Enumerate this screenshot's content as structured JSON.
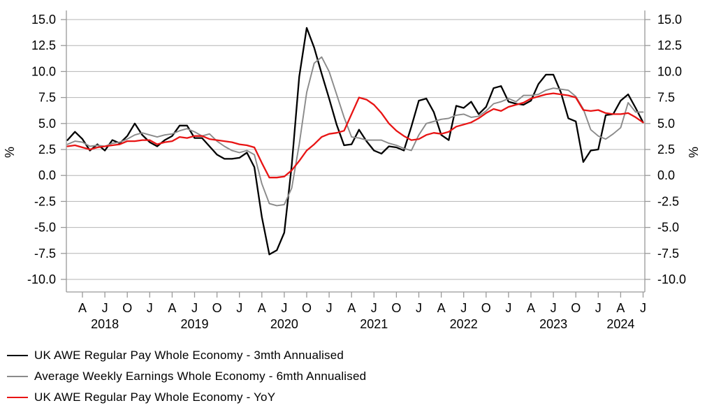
{
  "chart_data": {
    "type": "line",
    "title": "",
    "ylabel": "%",
    "ylabel_right": "%",
    "unit": "percent",
    "grid": "horizontal",
    "legend_position": "bottom-left",
    "ylim": [
      -10.0,
      15.0
    ],
    "ytick_labels": [
      "15.0",
      "12.5",
      "10.0",
      "7.5",
      "5.0",
      "2.5",
      "0.0",
      "-2.5",
      "-5.0",
      "-7.5",
      "-10.0"
    ],
    "x_start_month": "Feb 2018",
    "x_end_month": "Jul 2024",
    "xtick_quarters": [
      {
        "label": "A",
        "month": 2
      },
      {
        "label": "J",
        "month": 5
      },
      {
        "label": "O",
        "month": 8
      },
      {
        "label": "J",
        "month": 11
      },
      {
        "label": "A",
        "month": 14
      },
      {
        "label": "J",
        "month": 17
      },
      {
        "label": "O",
        "month": 20
      },
      {
        "label": "J",
        "month": 23
      },
      {
        "label": "A",
        "month": 26
      },
      {
        "label": "J",
        "month": 29
      },
      {
        "label": "O",
        "month": 32
      },
      {
        "label": "J",
        "month": 35
      },
      {
        "label": "A",
        "month": 38
      },
      {
        "label": "J",
        "month": 41
      },
      {
        "label": "O",
        "month": 44
      },
      {
        "label": "J",
        "month": 47
      },
      {
        "label": "A",
        "month": 50
      },
      {
        "label": "J",
        "month": 53
      },
      {
        "label": "O",
        "month": 56
      },
      {
        "label": "J",
        "month": 59
      },
      {
        "label": "A",
        "month": 62
      },
      {
        "label": "J",
        "month": 65
      },
      {
        "label": "O",
        "month": 68
      },
      {
        "label": "J",
        "month": 71
      },
      {
        "label": "A",
        "month": 74
      },
      {
        "label": "J",
        "month": 77
      }
    ],
    "year_labels": [
      {
        "label": "2018",
        "month": 5
      },
      {
        "label": "2019",
        "month": 17
      },
      {
        "label": "2020",
        "month": 29
      },
      {
        "label": "2021",
        "month": 41
      },
      {
        "label": "2022",
        "month": 53
      },
      {
        "label": "2023",
        "month": 65
      },
      {
        "label": "2024",
        "month": 74
      }
    ],
    "colors": {
      "grid": "#b4b4b4",
      "axis": "#999999",
      "tick_text": "#000000"
    },
    "series": [
      {
        "id": "awe-3mth-annualised",
        "name": "UK AWE Regular Pay Whole Economy - 3mth Annualised",
        "color": "#000000",
        "stroke_width": 2.3,
        "values": [
          3.4,
          4.2,
          3.5,
          2.4,
          3.0,
          2.4,
          3.4,
          3.1,
          3.8,
          5.0,
          3.9,
          3.2,
          2.8,
          3.4,
          3.8,
          4.8,
          4.8,
          3.6,
          3.6,
          2.8,
          2.0,
          1.6,
          1.6,
          1.7,
          2.2,
          0.8,
          -4.0,
          -7.6,
          -7.2,
          -5.5,
          1.0,
          9.5,
          14.2,
          12.3,
          9.8,
          7.4,
          4.9,
          2.9,
          3.0,
          4.4,
          3.3,
          2.4,
          2.1,
          2.8,
          2.7,
          2.4,
          4.7,
          7.2,
          7.4,
          6.1,
          3.9,
          3.4,
          6.7,
          6.5,
          7.1,
          5.9,
          6.6,
          8.4,
          8.6,
          7.1,
          6.9,
          6.8,
          7.2,
          8.8,
          9.7,
          9.7,
          8.0,
          5.5,
          5.2,
          1.3,
          2.4,
          2.5,
          5.8,
          5.9,
          7.2,
          7.8,
          6.5,
          5.1
        ]
      },
      {
        "id": "awe-6mth-annualised",
        "name": "Average Weekly Earnings Whole Economy - 6mth Annualised",
        "color": "#8a8a8a",
        "stroke_width": 1.9,
        "values": [
          3.0,
          3.3,
          3.2,
          2.8,
          2.9,
          2.8,
          3.1,
          3.2,
          3.5,
          3.9,
          4.1,
          3.9,
          3.7,
          3.9,
          4.0,
          4.3,
          4.5,
          4.2,
          3.8,
          4.0,
          3.3,
          2.8,
          2.4,
          2.2,
          2.4,
          2.0,
          -0.8,
          -2.7,
          -2.9,
          -2.8,
          -1.2,
          3.0,
          8.0,
          10.8,
          11.4,
          10.0,
          7.8,
          5.6,
          3.7,
          3.6,
          3.4,
          3.4,
          3.4,
          3.1,
          2.9,
          2.6,
          2.4,
          3.9,
          5.0,
          5.2,
          5.4,
          5.5,
          5.8,
          5.9,
          5.6,
          5.7,
          6.2,
          6.9,
          7.1,
          7.4,
          7.1,
          7.7,
          7.7,
          7.8,
          8.2,
          8.4,
          8.3,
          8.2,
          7.6,
          6.4,
          4.4,
          3.8,
          3.5,
          4.0,
          4.6,
          7.0,
          6.1,
          6.1
        ]
      },
      {
        "id": "awe-yoy",
        "name": "UK AWE Regular Pay Whole Economy - YoY",
        "color": "#e81414",
        "stroke_width": 2.3,
        "values": [
          2.8,
          2.9,
          2.7,
          2.5,
          2.7,
          2.8,
          2.9,
          3.0,
          3.3,
          3.3,
          3.4,
          3.4,
          3.0,
          3.2,
          3.3,
          3.7,
          3.6,
          3.8,
          3.8,
          3.5,
          3.4,
          3.3,
          3.2,
          3.0,
          2.9,
          2.7,
          1.2,
          -0.2,
          -0.2,
          -0.1,
          0.5,
          1.4,
          2.4,
          3.0,
          3.7,
          4.0,
          4.1,
          4.3,
          5.9,
          7.5,
          7.3,
          6.8,
          6.0,
          5.0,
          4.3,
          3.8,
          3.4,
          3.5,
          3.9,
          4.1,
          4.0,
          4.2,
          4.7,
          4.9,
          5.1,
          5.5,
          6.0,
          6.4,
          6.2,
          6.6,
          6.8,
          7.0,
          7.4,
          7.6,
          7.8,
          7.9,
          7.8,
          7.7,
          7.5,
          6.3,
          6.2,
          6.3,
          6.0,
          5.9,
          5.9,
          6.0,
          5.6,
          5.1
        ]
      }
    ]
  }
}
